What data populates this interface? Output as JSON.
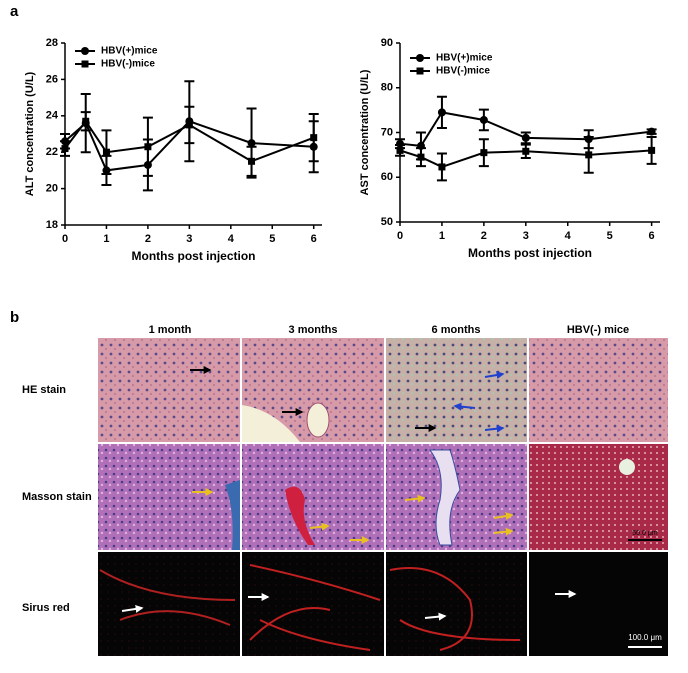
{
  "panel_labels": [
    "a",
    "b"
  ],
  "chart_data": [
    {
      "type": "line",
      "xlabel": "Months post injection",
      "ylabel": "ALT concentration (U/L)",
      "x": [
        0,
        0.5,
        1,
        2,
        3,
        4.5,
        6
      ],
      "xlim": [
        0,
        6.2
      ],
      "xticks": [
        0,
        1,
        2,
        3,
        4,
        5,
        6
      ],
      "ylim": [
        18,
        28
      ],
      "yticks": [
        18,
        20,
        22,
        24,
        26,
        28
      ],
      "legend": "upper left",
      "series": [
        {
          "name": "HBV(+)mice",
          "color": "#000000",
          "marker": "circle",
          "values": [
            22.6,
            23.6,
            21.0,
            21.3,
            23.7,
            22.5,
            22.3
          ],
          "errors": [
            0.4,
            1.6,
            0.8,
            1.4,
            2.2,
            1.9,
            1.4
          ]
        },
        {
          "name": "HBV(-)mice",
          "color": "#000000",
          "marker": "square",
          "values": [
            22.2,
            23.7,
            22.0,
            22.3,
            23.5,
            21.5,
            22.8
          ],
          "errors": [
            0.4,
            0.5,
            1.2,
            1.6,
            1.0,
            0.8,
            1.3
          ]
        }
      ]
    },
    {
      "type": "line",
      "xlabel": "Months post injection",
      "ylabel": "AST concentration (U/L)",
      "x": [
        0,
        0.5,
        1,
        2,
        3,
        4.5,
        6
      ],
      "xlim": [
        0,
        6.2
      ],
      "xticks": [
        0,
        1,
        2,
        3,
        4,
        5,
        6
      ],
      "ylim": [
        50,
        90
      ],
      "yticks": [
        50,
        60,
        70,
        80,
        90
      ],
      "legend": "upper left",
      "series": [
        {
          "name": "HBV(+)mice",
          "color": "#000000",
          "marker": "circle",
          "values": [
            67.5,
            67.0,
            74.5,
            72.8,
            68.8,
            68.5,
            70.2
          ],
          "errors": [
            1.0,
            3.0,
            3.5,
            2.3,
            1.2,
            2.0,
            0.5
          ]
        },
        {
          "name": "HBV(-)mice",
          "color": "#000000",
          "marker": "square",
          "values": [
            66.0,
            64.5,
            62.3,
            65.5,
            65.8,
            65.0,
            66.0
          ],
          "errors": [
            1.2,
            2.0,
            3.0,
            3.0,
            1.5,
            4.0,
            3.0
          ]
        }
      ]
    }
  ],
  "histology": {
    "columns": [
      "1 month",
      "3 months",
      "6 months",
      "HBV(-) mice"
    ],
    "rows": [
      "HE stain",
      "Masson stain",
      "Sirus red"
    ],
    "scale_bars": [
      "50.0 μm",
      "100.0 μm"
    ]
  }
}
